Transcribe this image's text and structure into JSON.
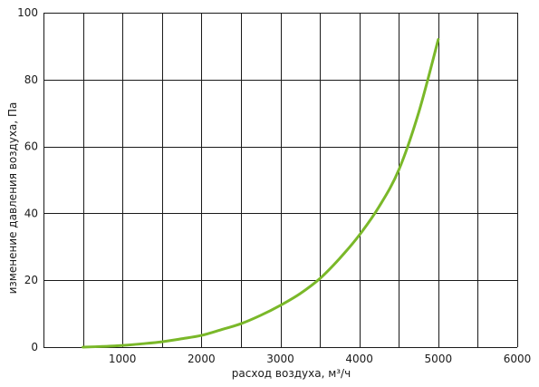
{
  "chart_data": {
    "type": "line",
    "xlabel": "расход воздуха, м³/ч",
    "ylabel": "изменение давления воздуха, Па",
    "xlim": [
      0,
      6000
    ],
    "ylim": [
      0,
      100
    ],
    "x_ticks": [
      1000,
      2000,
      3000,
      4000,
      5000,
      6000
    ],
    "y_ticks": [
      0,
      20,
      40,
      60,
      80,
      100
    ],
    "x_tick_labels": [
      "1000",
      "2000",
      "3000",
      "4000",
      "5000",
      "6000"
    ],
    "y_tick_labels": [
      "0",
      "20",
      "40",
      "60",
      "80",
      "100"
    ],
    "x_grid_step": 500,
    "grid": true,
    "line_color": "#7ab829",
    "series": [
      {
        "x": [
          500,
          750,
          1000,
          1250,
          1500,
          1750,
          2000,
          2250,
          2500,
          2750,
          3000,
          3250,
          3500,
          3750,
          4000,
          4250,
          4500,
          4750,
          5000
        ],
        "y": [
          0,
          0.2,
          0.5,
          1.0,
          1.6,
          2.5,
          3.5,
          5.2,
          7.0,
          9.5,
          12.5,
          16.0,
          20.5,
          26.5,
          33.5,
          42.0,
          53.0,
          70.0,
          92.0
        ]
      }
    ]
  }
}
